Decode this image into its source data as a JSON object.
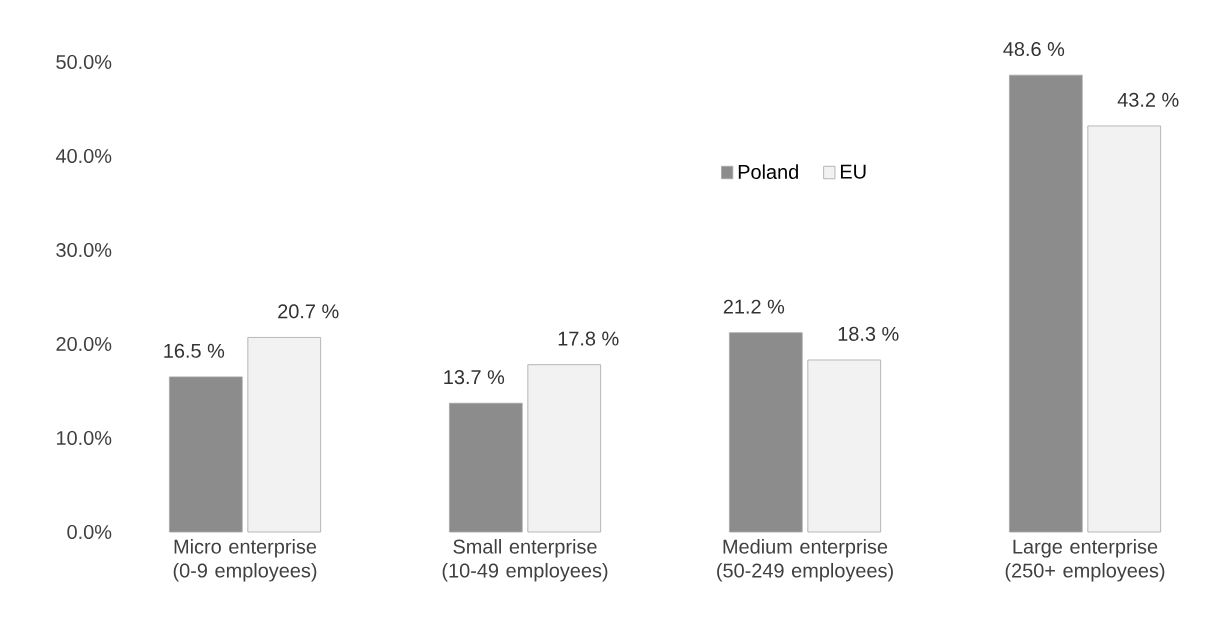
{
  "chart_data": {
    "type": "bar",
    "categories": [
      "Micro enterprise (0-9 employees)",
      "Small enterprise (10-49 employees)",
      "Medium enterprise (50-249 employees)",
      "Large enterprise (250+ employees)"
    ],
    "series": [
      {
        "name": "Poland",
        "color": "#8c8c8c",
        "values": [
          16.5,
          13.7,
          21.2,
          48.6
        ],
        "value_labels": [
          "16.5 %",
          "13.7 %",
          "21.2 %",
          "48.6 %"
        ]
      },
      {
        "name": "EU",
        "color": "#f2f2f2",
        "values": [
          20.7,
          17.8,
          18.3,
          43.2
        ],
        "value_labels": [
          "20.7 %",
          "17.8 %",
          "18.3 %",
          "43.2 %"
        ]
      }
    ],
    "ylim": [
      0,
      50
    ],
    "yticks": [
      {
        "value": 0,
        "label": "0.0%"
      },
      {
        "value": 10,
        "label": "10.0%"
      },
      {
        "value": 20,
        "label": "20.0%"
      },
      {
        "value": 30,
        "label": "30.0%"
      },
      {
        "value": 40,
        "label": "40.0%"
      },
      {
        "value": 50,
        "label": "50.0%"
      }
    ],
    "legend": "top"
  }
}
